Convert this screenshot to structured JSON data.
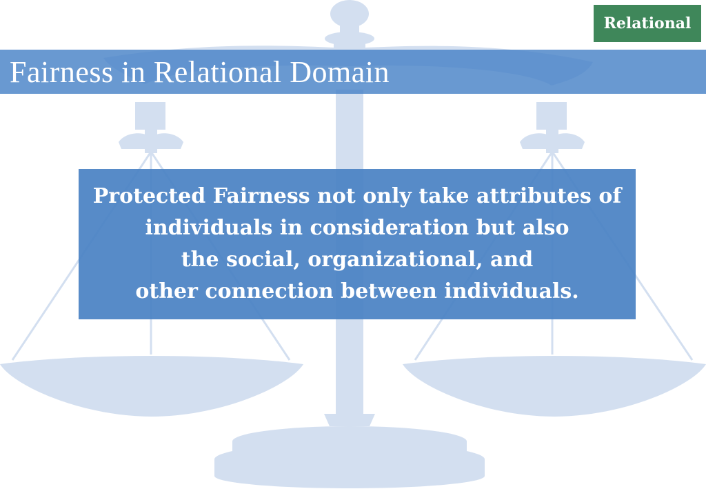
{
  "tag": {
    "label": "Relational",
    "color": "#3f875a"
  },
  "title": {
    "text": "Fairness in Relational Domain"
  },
  "content": {
    "lines": [
      "Protected Fairness not only take attributes of",
      "individuals in consideration but also",
      "the social, organizational, and",
      "other connection between individuals."
    ]
  },
  "background": {
    "icon": "balance-scale-icon",
    "color": "#d6e2f1"
  }
}
